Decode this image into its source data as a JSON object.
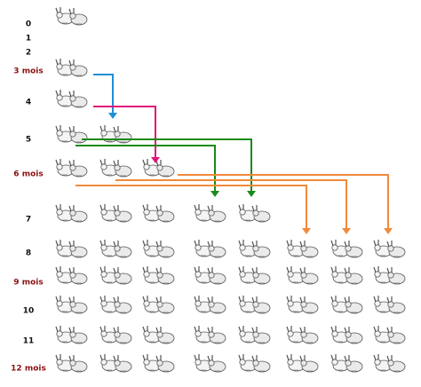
{
  "rows": [
    {
      "label": "0"
    },
    {
      "label": "1"
    },
    {
      "label": "2"
    },
    {
      "label": "3 mois"
    },
    {
      "label": "4"
    },
    {
      "label": "5"
    },
    {
      "label": "6 mois"
    },
    {
      "label": "7"
    },
    {
      "label": "8"
    },
    {
      "label": "9 mois"
    },
    {
      "label": "10"
    },
    {
      "label": "11"
    },
    {
      "label": "12 mois"
    }
  ]
}
